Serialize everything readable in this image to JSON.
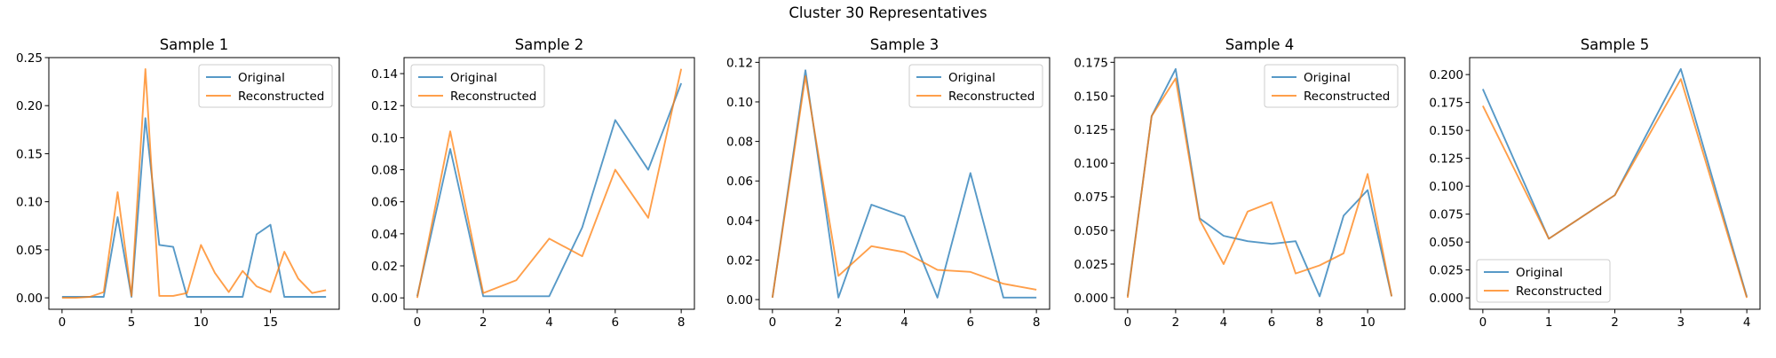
{
  "figure": {
    "title": "Cluster 30 Representatives"
  },
  "colors": {
    "original": "#1f77b4",
    "reconstructed": "#ff7f0e"
  },
  "chart_data": [
    {
      "type": "line",
      "title": "Sample 1",
      "xlabel": "",
      "ylabel": "",
      "xlim": [
        -0.95,
        19.95
      ],
      "ylim": [
        -0.0119,
        0.25
      ],
      "xticks": [
        0,
        5,
        10,
        15
      ],
      "yticks": [
        0.0,
        0.05,
        0.1,
        0.15,
        0.2,
        0.25
      ],
      "ytick_labels": [
        "0.00",
        "0.05",
        "0.10",
        "0.15",
        "0.20",
        "0.25"
      ],
      "legend": "upper right",
      "series": [
        {
          "name": "Original",
          "x": [
            0,
            1,
            2,
            3,
            4,
            5,
            6,
            7,
            8,
            9,
            10,
            11,
            12,
            13,
            14,
            15,
            16,
            17,
            18,
            19
          ],
          "values": [
            0.001,
            0.001,
            0.001,
            0.001,
            0.084,
            0.001,
            0.187,
            0.055,
            0.053,
            0.001,
            0.001,
            0.001,
            0.001,
            0.001,
            0.066,
            0.076,
            0.001,
            0.001,
            0.001,
            0.001
          ]
        },
        {
          "name": "Reconstructed",
          "x": [
            0,
            1,
            2,
            3,
            4,
            5,
            6,
            7,
            8,
            9,
            10,
            11,
            12,
            13,
            14,
            15,
            16,
            17,
            18,
            19
          ],
          "values": [
            0.0,
            0.0,
            0.001,
            0.006,
            0.11,
            0.002,
            0.238,
            0.002,
            0.002,
            0.005,
            0.055,
            0.026,
            0.006,
            0.028,
            0.012,
            0.006,
            0.048,
            0.02,
            0.005,
            0.008
          ]
        }
      ]
    },
    {
      "type": "line",
      "title": "Sample 2",
      "xlabel": "",
      "ylabel": "",
      "xlim": [
        -0.4,
        8.4
      ],
      "ylim": [
        -0.0071,
        0.15
      ],
      "xticks": [
        0,
        2,
        4,
        6,
        8
      ],
      "yticks": [
        0.0,
        0.02,
        0.04,
        0.06,
        0.08,
        0.1,
        0.12,
        0.14
      ],
      "ytick_labels": [
        "0.00",
        "0.02",
        "0.04",
        "0.06",
        "0.08",
        "0.10",
        "0.12",
        "0.14"
      ],
      "legend": "upper left",
      "series": [
        {
          "name": "Original",
          "x": [
            0,
            1,
            2,
            3,
            4,
            5,
            6,
            7,
            8
          ],
          "values": [
            0.001,
            0.093,
            0.001,
            0.001,
            0.001,
            0.044,
            0.111,
            0.08,
            0.134
          ]
        },
        {
          "name": "Reconstructed",
          "x": [
            0,
            1,
            2,
            3,
            4,
            5,
            6,
            7,
            8
          ],
          "values": [
            0.0,
            0.104,
            0.003,
            0.011,
            0.037,
            0.026,
            0.08,
            0.05,
            0.143
          ]
        }
      ]
    },
    {
      "type": "line",
      "title": "Sample 3",
      "xlabel": "",
      "ylabel": "",
      "xlim": [
        -0.4,
        8.4
      ],
      "ylim": [
        -0.0049,
        0.1224
      ],
      "xticks": [
        0,
        2,
        4,
        6,
        8
      ],
      "yticks": [
        0.0,
        0.02,
        0.04,
        0.06,
        0.08,
        0.1,
        0.12
      ],
      "ytick_labels": [
        "0.00",
        "0.02",
        "0.04",
        "0.06",
        "0.08",
        "0.10",
        "0.12"
      ],
      "legend": "upper right",
      "series": [
        {
          "name": "Original",
          "x": [
            0,
            1,
            2,
            3,
            4,
            5,
            6,
            7,
            8
          ],
          "values": [
            0.001,
            0.116,
            0.001,
            0.048,
            0.042,
            0.001,
            0.064,
            0.001,
            0.001
          ]
        },
        {
          "name": "Reconstructed",
          "x": [
            0,
            1,
            2,
            3,
            4,
            5,
            6,
            7,
            8
          ],
          "values": [
            0.001,
            0.113,
            0.012,
            0.027,
            0.024,
            0.015,
            0.014,
            0.008,
            0.005
          ]
        }
      ]
    },
    {
      "type": "line",
      "title": "Sample 4",
      "xlabel": "",
      "ylabel": "",
      "xlim": [
        -0.55,
        11.55
      ],
      "ylim": [
        -0.0086,
        0.1785
      ],
      "xticks": [
        0,
        2,
        4,
        6,
        8,
        10
      ],
      "yticks": [
        0.0,
        0.025,
        0.05,
        0.075,
        0.1,
        0.125,
        0.15,
        0.175
      ],
      "ytick_labels": [
        "0.000",
        "0.025",
        "0.050",
        "0.075",
        "0.100",
        "0.125",
        "0.150",
        "0.175"
      ],
      "legend": "upper right",
      "series": [
        {
          "name": "Original",
          "x": [
            0,
            1,
            2,
            3,
            4,
            5,
            6,
            7,
            8,
            9,
            10,
            11
          ],
          "values": [
            0.001,
            0.135,
            0.17,
            0.059,
            0.046,
            0.042,
            0.04,
            0.042,
            0.001,
            0.061,
            0.08,
            0.001
          ]
        },
        {
          "name": "Reconstructed",
          "x": [
            0,
            1,
            2,
            3,
            4,
            5,
            6,
            7,
            8,
            9,
            10,
            11
          ],
          "values": [
            0.0,
            0.135,
            0.163,
            0.058,
            0.025,
            0.064,
            0.071,
            0.018,
            0.024,
            0.033,
            0.092,
            0.001
          ]
        }
      ]
    },
    {
      "type": "line",
      "title": "Sample 5",
      "xlabel": "",
      "ylabel": "",
      "xlim": [
        -0.2,
        4.2
      ],
      "ylim": [
        -0.0102,
        0.2152
      ],
      "xticks": [
        0,
        1,
        2,
        3,
        4
      ],
      "yticks": [
        0.0,
        0.025,
        0.05,
        0.075,
        0.1,
        0.125,
        0.15,
        0.175,
        0.2
      ],
      "ytick_labels": [
        "0.000",
        "0.025",
        "0.050",
        "0.075",
        "0.100",
        "0.125",
        "0.150",
        "0.175",
        "0.200"
      ],
      "legend": "lower left",
      "series": [
        {
          "name": "Original",
          "x": [
            0,
            1,
            2,
            3,
            4
          ],
          "values": [
            0.187,
            0.053,
            0.092,
            0.205,
            0.001
          ]
        },
        {
          "name": "Reconstructed",
          "x": [
            0,
            1,
            2,
            3,
            4
          ],
          "values": [
            0.172,
            0.053,
            0.092,
            0.196,
            0.0
          ]
        }
      ]
    }
  ]
}
